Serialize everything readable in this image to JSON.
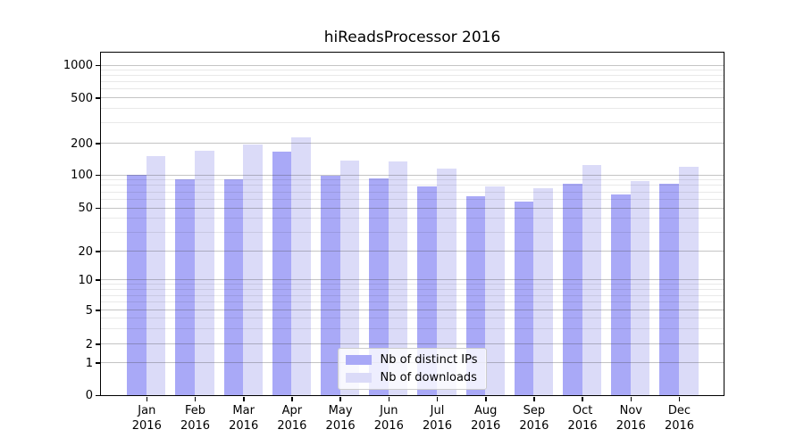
{
  "chart_data": {
    "type": "bar",
    "title": "hiReadsProcessor 2016",
    "categories": [
      "Jan 2016",
      "Feb 2016",
      "Mar 2016",
      "Apr 2016",
      "May 2016",
      "Jun 2016",
      "Jul 2016",
      "Aug 2016",
      "Sep 2016",
      "Oct 2016",
      "Nov 2016",
      "Dec 2016"
    ],
    "series": [
      {
        "name": "Nb of distinct IPs",
        "color": "#a9a9f7",
        "values": [
          100,
          91,
          91,
          165,
          99,
          93,
          78,
          64,
          57,
          83,
          66,
          83
        ]
      },
      {
        "name": "Nb of downloads",
        "color": "#dbdbf8",
        "values": [
          150,
          170,
          194,
          225,
          138,
          133,
          114,
          78,
          75,
          125,
          88,
          119
        ]
      }
    ],
    "xlabel": "",
    "ylabel": "",
    "yscale": "log-like (0,1,2,5 sequence)",
    "y_ticks": [
      0,
      1,
      2,
      5,
      10,
      20,
      50,
      100,
      200,
      500,
      1000
    ],
    "ylim": [
      0,
      1000
    ],
    "grid": true,
    "grid_major_color": "#bdbdbd",
    "grid_minor_color": "#ebebeb",
    "legend_position": "lower center",
    "background_color": "#ffffff",
    "spine_color": "#000000"
  }
}
